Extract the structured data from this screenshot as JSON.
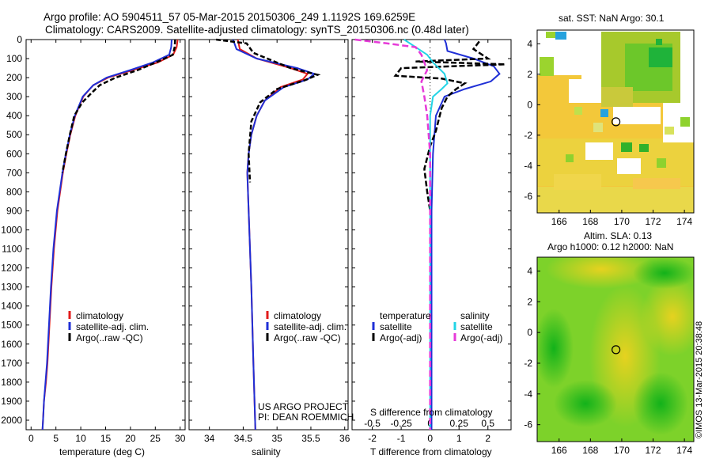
{
  "header": {
    "line1": "Argo profile: AO 5904511_57 05-Mar-2015 20150306_249 1.1192S 169.6259E",
    "line2": "Climatology: CARS2009. Satellite-adjusted climatology: synTS_20150306.nc (0.48d later)"
  },
  "colors": {
    "climatology": "#e21b1b",
    "satellite": "#1f2fd6",
    "argo": "#000000",
    "s_satellite": "#22d4e6",
    "s_argo": "#e63ad8"
  },
  "chart_data": [
    {
      "id": "temperature",
      "type": "line",
      "xlabel": "temperature (deg C)",
      "ylabel": "depth",
      "xlim": [
        -1,
        31
      ],
      "ylim": [
        2050,
        0
      ],
      "xticks": [
        0,
        5,
        10,
        15,
        20,
        25,
        30
      ],
      "yticks": [
        0,
        100,
        200,
        300,
        400,
        500,
        600,
        700,
        800,
        900,
        1000,
        1100,
        1200,
        1300,
        1400,
        1500,
        1600,
        1700,
        1800,
        1900,
        2000
      ],
      "legend": [
        "climatology",
        "satellite-adj. clim.",
        "Argo(..raw -QC)"
      ],
      "series": [
        {
          "name": "climatology",
          "color": "#e21b1b",
          "dash": "",
          "x": [
            29.5,
            29.3,
            28.6,
            25.5,
            20.5,
            15.5,
            12.5,
            10.5,
            8.9,
            7.9,
            7.1,
            6.4,
            5.3,
            4.6,
            4.1,
            3.7,
            3.3,
            3.0,
            2.6,
            2.4,
            2.3
          ],
          "y": [
            0,
            40,
            80,
            120,
            160,
            200,
            240,
            300,
            400,
            500,
            600,
            700,
            900,
            1100,
            1300,
            1500,
            1700,
            1800,
            1900,
            2000,
            2050
          ]
        },
        {
          "name": "satellite-adj. clim.",
          "color": "#1f2fd6",
          "dash": "",
          "x": [
            28.3,
            28.2,
            27.8,
            24.5,
            20.0,
            15.2,
            12.5,
            10.4,
            8.8,
            7.8,
            7.0,
            6.3,
            5.2,
            4.5,
            4.0,
            3.6,
            3.2,
            2.9,
            2.6,
            2.4,
            2.3
          ],
          "y": [
            0,
            40,
            80,
            120,
            160,
            200,
            240,
            300,
            400,
            500,
            600,
            700,
            900,
            1100,
            1300,
            1500,
            1700,
            1800,
            1900,
            2000,
            2050
          ]
        },
        {
          "name": "Argo(..raw -QC)",
          "color": "#000000",
          "dash": "6,3",
          "x": [
            29.0,
            28.9,
            28.5,
            26.0,
            21.5,
            17.0,
            13.8,
            12.2,
            10.3,
            8.7,
            7.8,
            7.0,
            6.3
          ],
          "y": [
            0,
            40,
            80,
            110,
            160,
            200,
            240,
            280,
            330,
            400,
            500,
            600,
            700
          ]
        }
      ]
    },
    {
      "id": "salinity",
      "type": "line",
      "xlabel": "salinity",
      "ylabel": "depth",
      "xlim": [
        33.7,
        36.05
      ],
      "ylim": [
        2050,
        0
      ],
      "xticks": [
        34,
        34.5,
        35,
        35.5,
        36
      ],
      "legend": [
        "climatology",
        "satellite-adj. clim.",
        "Argo(..raw -QC)"
      ],
      "series": [
        {
          "name": "climatology",
          "color": "#e21b1b",
          "dash": "",
          "x": [
            34.42,
            34.45,
            34.7,
            35.2,
            35.45,
            35.38,
            35.05,
            34.82,
            34.7,
            34.62,
            34.58,
            34.56,
            34.58,
            34.62,
            34.65,
            34.68
          ],
          "y": [
            0,
            50,
            100,
            150,
            180,
            210,
            250,
            320,
            400,
            500,
            600,
            700,
            900,
            1300,
            1700,
            2050
          ]
        },
        {
          "name": "satellite-adj. clim.",
          "color": "#1f2fd6",
          "dash": "",
          "x": [
            34.35,
            34.4,
            34.7,
            35.3,
            35.55,
            35.45,
            35.1,
            34.82,
            34.7,
            34.62,
            34.58,
            34.56,
            34.58,
            34.62,
            34.65,
            34.68
          ],
          "y": [
            0,
            50,
            100,
            150,
            180,
            210,
            250,
            320,
            400,
            500,
            600,
            700,
            900,
            1300,
            1700,
            2050
          ]
        },
        {
          "name": "Argo(..raw -QC)",
          "color": "#000000",
          "dash": "6,3",
          "x": [
            34.1,
            34.55,
            34.65,
            35.2,
            35.6,
            35.4,
            35.0,
            34.75,
            34.62,
            34.58,
            34.6
          ],
          "y": [
            0,
            20,
            70,
            150,
            185,
            215,
            260,
            330,
            430,
            600,
            750
          ]
        }
      ]
    },
    {
      "id": "differences",
      "type": "line",
      "xlabel": "T difference from climatology",
      "xlabel_top": "S difference from climatology",
      "ylabel": "depth",
      "xlim": [
        -2.7,
        2.8
      ],
      "ylim": [
        2050,
        0
      ],
      "xticks": [
        -2,
        -1,
        0,
        1,
        2
      ],
      "xticks_s": [
        -0.5,
        -0.25,
        0,
        0.25,
        0.5
      ],
      "legend_titles": [
        "temperature",
        "salinity"
      ],
      "legend": [
        "satellite",
        "Argo(-adj)",
        "satellite",
        "Argo(-adj)"
      ],
      "series": [
        {
          "name": "T satellite",
          "color": "#1f2fd6",
          "dash": "",
          "x": [
            0.5,
            0.55,
            0.6,
            1.5,
            2.2,
            2.4,
            2.1,
            1.2,
            0.5,
            0.2,
            0.1,
            0.05,
            0.05,
            0.05,
            0.05
          ],
          "y": [
            0,
            20,
            60,
            100,
            140,
            180,
            220,
            260,
            300,
            400,
            600,
            900,
            1300,
            1700,
            2050
          ]
        },
        {
          "name": "T Argo(-adj)",
          "color": "#000000",
          "dash": "7,3",
          "x": [
            1.7,
            1.5,
            2.0,
            -0.5,
            2.6,
            -1.0,
            -1.2,
            0.4,
            1.2,
            0.9,
            0.6,
            0.4,
            0.3,
            0.2,
            0.0,
            -0.2,
            -0.1,
            0.0
          ],
          "y": [
            10,
            50,
            100,
            115,
            130,
            150,
            190,
            205,
            230,
            260,
            300,
            360,
            420,
            480,
            560,
            680,
            800,
            900
          ]
        },
        {
          "name": "S satellite",
          "color": "#22d4e6",
          "dash": "",
          "x": [
            -0.9,
            -0.5,
            -0.1,
            0.1,
            0.3,
            0.5,
            0.6,
            0.4,
            0.1,
            0.0,
            0.0,
            0.0,
            0.0
          ],
          "y": [
            0,
            40,
            80,
            120,
            150,
            180,
            230,
            260,
            300,
            400,
            800,
            1400,
            2050
          ]
        },
        {
          "name": "S Argo(-adj)",
          "color": "#e63ad8",
          "dash": "8,4",
          "x": [
            -2.6,
            -1.5,
            -0.5,
            -0.3,
            -0.2,
            -0.1,
            -0.3,
            -0.2,
            -0.1,
            0.0,
            0.0
          ],
          "y": [
            0,
            20,
            40,
            80,
            120,
            160,
            220,
            300,
            400,
            600,
            2050
          ]
        }
      ]
    }
  ],
  "maps": {
    "sst": {
      "title": "sat. SST: NaN Argo: 30.1",
      "xticks": [
        166,
        168,
        170,
        172,
        174
      ],
      "yticks": [
        4,
        2,
        0,
        -2,
        -4,
        -6
      ],
      "xlim": [
        164.6,
        174.6
      ],
      "ylim": [
        -7.1,
        4.9
      ],
      "marker": {
        "lon": 169.63,
        "lat": -1.12
      }
    },
    "sla": {
      "title_line1": "Altim. SLA: 0.13",
      "title_line2": "Argo h1000: 0.12 h2000: NaN",
      "xticks": [
        166,
        168,
        170,
        172,
        174
      ],
      "yticks": [
        4,
        2,
        0,
        -2,
        -4,
        -6
      ],
      "xlim": [
        164.6,
        174.6
      ],
      "ylim": [
        -7.1,
        4.9
      ],
      "marker": {
        "lon": 169.63,
        "lat": -1.12
      }
    }
  },
  "credits": {
    "project": "US ARGO PROJECT",
    "pi": "PI: DEAN ROEMMICH",
    "stamp": "©IMOS 13-Mar-2015 20:38:48"
  }
}
